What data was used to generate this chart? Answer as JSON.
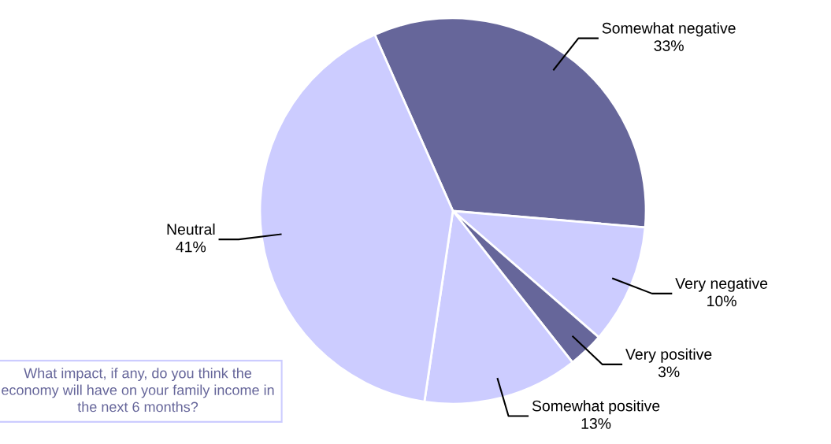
{
  "chart_data": {
    "type": "pie",
    "categories": [
      "Somewhat negative",
      "Very negative",
      "Very positive",
      "Somewhat positive",
      "Neutral"
    ],
    "values": [
      33,
      10,
      3,
      13,
      41
    ],
    "value_labels": [
      "33%",
      "10%",
      "3%",
      "13%",
      "41%"
    ],
    "colors": [
      "#66669a",
      "#ccccff",
      "#66669a",
      "#ccccff",
      "#ccccff"
    ],
    "annotations": [
      "What impact, if any, do you think the economy will have on your family income in the next 6 months?"
    ],
    "legend": false
  }
}
